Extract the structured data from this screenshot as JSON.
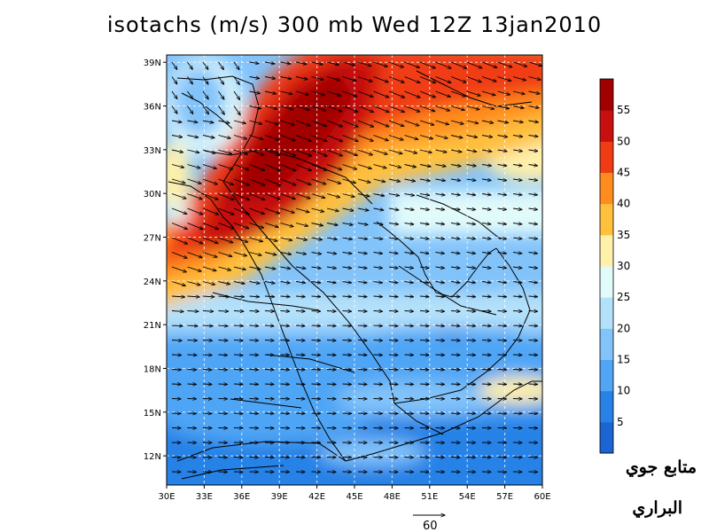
{
  "title": "isotachs (m/s) 300 mb Wed 12Z 13jan2010",
  "lat_labels": [
    "12N",
    "15N",
    "18N",
    "21N",
    "24N",
    "27N",
    "30N",
    "33N",
    "36N",
    "39N"
  ],
  "lon_labels": [
    "30E",
    "33E",
    "36E",
    "39E",
    "42E",
    "45E",
    "48E",
    "51E",
    "54E",
    "57E",
    "60E"
  ],
  "colorbar": {
    "labels": [
      "5",
      "10",
      "15",
      "20",
      "25",
      "30",
      "35",
      "40",
      "45",
      "50",
      "55"
    ],
    "colors": [
      "#1c64d2",
      "#2882e6",
      "#50a5f5",
      "#82c3fa",
      "#b4e1fa",
      "#e1fafa",
      "#fff0aa",
      "#ffc03c",
      "#ff8c1e",
      "#f03c14",
      "#c80f0f",
      "#a00000"
    ]
  },
  "reference_vector": {
    "value": "60"
  },
  "signature": {
    "line1": "متابع جوي",
    "line2": "البراري"
  }
}
